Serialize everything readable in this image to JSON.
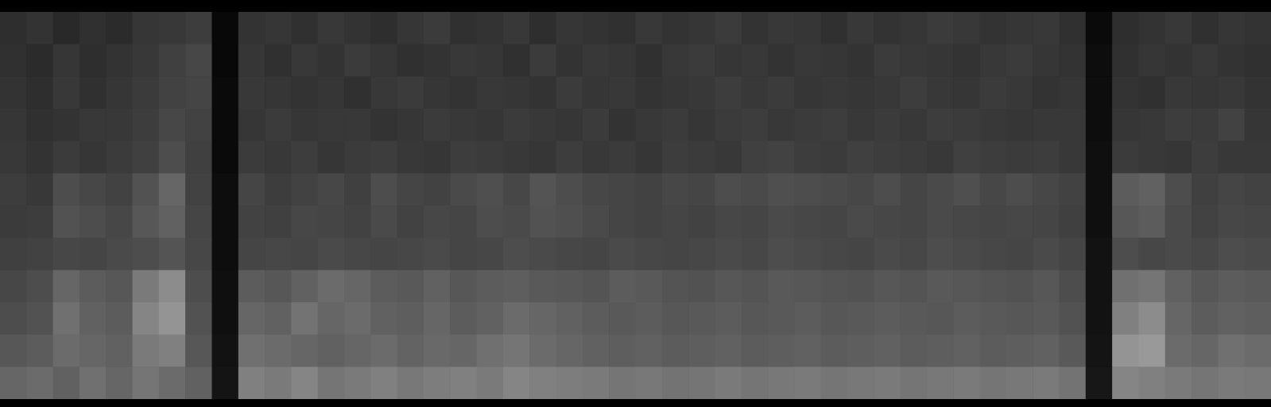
{
  "chart_data": {
    "type": "heatmap",
    "xlim": [
      0,
      48
    ],
    "ylim": [
      0,
      12
    ],
    "zlim": [
      0,
      100
    ],
    "tick_labels": false,
    "color": "#ffffff",
    "cells": [
      [
        18,
        20,
        16,
        19,
        17,
        21,
        22,
        24,
        3,
        20,
        21,
        19,
        22,
        20,
        18,
        21,
        23,
        19,
        20,
        22,
        18,
        21,
        20,
        19,
        22,
        20,
        21,
        23,
        20,
        22,
        21,
        19,
        22,
        20,
        21,
        23,
        22,
        20,
        21,
        22,
        19,
        4,
        18,
        20,
        22,
        19,
        21,
        20
      ],
      [
        19,
        17,
        21,
        18,
        20,
        22,
        25,
        28,
        3,
        21,
        19,
        22,
        20,
        23,
        21,
        19,
        20,
        22,
        21,
        19,
        23,
        20,
        22,
        21,
        19,
        22,
        23,
        21,
        22,
        20,
        22,
        21,
        20,
        23,
        22,
        21,
        20,
        22,
        23,
        21,
        20,
        5,
        19,
        21,
        20,
        22,
        20,
        19
      ],
      [
        20,
        18,
        22,
        19,
        21,
        23,
        26,
        27,
        4,
        22,
        21,
        20,
        21,
        19,
        22,
        23,
        21,
        20,
        22,
        21,
        20,
        23,
        21,
        22,
        20,
        21,
        22,
        24,
        22,
        23,
        21,
        22,
        21,
        22,
        24,
        22,
        21,
        23,
        22,
        20,
        21,
        5,
        20,
        19,
        22,
        21,
        22,
        20
      ],
      [
        21,
        19,
        20,
        22,
        22,
        24,
        28,
        26,
        4,
        21,
        23,
        21,
        22,
        22,
        20,
        21,
        23,
        22,
        21,
        23,
        22,
        21,
        23,
        20,
        22,
        23,
        21,
        23,
        24,
        22,
        23,
        24,
        22,
        23,
        22,
        24,
        23,
        22,
        21,
        22,
        22,
        5,
        21,
        22,
        24,
        23,
        26,
        21
      ],
      [
        22,
        20,
        23,
        21,
        23,
        25,
        30,
        25,
        4,
        23,
        22,
        24,
        21,
        23,
        24,
        22,
        21,
        24,
        23,
        22,
        21,
        24,
        22,
        23,
        21,
        24,
        23,
        22,
        25,
        26,
        24,
        23,
        25,
        24,
        23,
        22,
        25,
        24,
        23,
        24,
        22,
        6,
        23,
        22,
        21,
        24,
        22,
        22
      ],
      [
        24,
        22,
        30,
        28,
        26,
        32,
        40,
        26,
        5,
        27,
        24,
        26,
        28,
        25,
        30,
        27,
        26,
        29,
        31,
        28,
        33,
        30,
        28,
        27,
        26,
        28,
        27,
        30,
        29,
        31,
        30,
        29,
        28,
        30,
        27,
        29,
        31,
        28,
        30,
        28,
        26,
        6,
        36,
        38,
        30,
        25,
        27,
        26
      ],
      [
        23,
        24,
        32,
        30,
        28,
        34,
        38,
        27,
        5,
        26,
        25,
        28,
        27,
        26,
        29,
        26,
        28,
        27,
        30,
        29,
        32,
        31,
        29,
        27,
        26,
        27,
        26,
        28,
        27,
        29,
        28,
        27,
        29,
        28,
        27,
        29,
        28,
        27,
        28,
        27,
        25,
        6,
        34,
        36,
        29,
        26,
        28,
        27
      ],
      [
        25,
        26,
        28,
        27,
        29,
        30,
        33,
        28,
        5,
        27,
        28,
        27,
        29,
        28,
        27,
        28,
        29,
        27,
        28,
        30,
        29,
        28,
        27,
        29,
        28,
        27,
        28,
        29,
        28,
        30,
        29,
        28,
        27,
        29,
        28,
        30,
        29,
        28,
        27,
        29,
        27,
        7,
        30,
        28,
        29,
        28,
        30,
        29
      ],
      [
        28,
        30,
        40,
        36,
        34,
        48,
        55,
        30,
        6,
        36,
        34,
        38,
        42,
        40,
        36,
        35,
        38,
        34,
        36,
        37,
        35,
        34,
        33,
        36,
        35,
        33,
        32,
        34,
        33,
        35,
        34,
        33,
        32,
        34,
        33,
        35,
        34,
        33,
        32,
        34,
        30,
        7,
        44,
        46,
        38,
        34,
        36,
        35
      ],
      [
        30,
        32,
        44,
        38,
        36,
        52,
        58,
        32,
        6,
        40,
        38,
        45,
        40,
        42,
        38,
        37,
        40,
        36,
        38,
        42,
        40,
        38,
        36,
        35,
        36,
        34,
        35,
        36,
        34,
        35,
        36,
        34,
        35,
        36,
        35,
        34,
        36,
        35,
        34,
        35,
        32,
        7,
        50,
        55,
        40,
        36,
        38,
        37
      ],
      [
        34,
        36,
        42,
        40,
        38,
        48,
        50,
        34,
        7,
        44,
        42,
        40,
        38,
        40,
        42,
        39,
        41,
        40,
        44,
        46,
        42,
        40,
        38,
        37,
        38,
        36,
        37,
        38,
        36,
        37,
        38,
        36,
        37,
        38,
        36,
        37,
        38,
        36,
        37,
        38,
        35,
        8,
        58,
        60,
        42,
        40,
        44,
        42
      ],
      [
        40,
        42,
        38,
        44,
        40,
        46,
        42,
        38,
        8,
        50,
        48,
        52,
        46,
        48,
        50,
        47,
        49,
        50,
        48,
        52,
        50,
        49,
        48,
        46,
        47,
        45,
        46,
        48,
        46,
        47,
        48,
        46,
        47,
        48,
        46,
        47,
        48,
        46,
        47,
        48,
        45,
        9,
        52,
        50,
        48,
        46,
        48,
        47
      ]
    ]
  }
}
